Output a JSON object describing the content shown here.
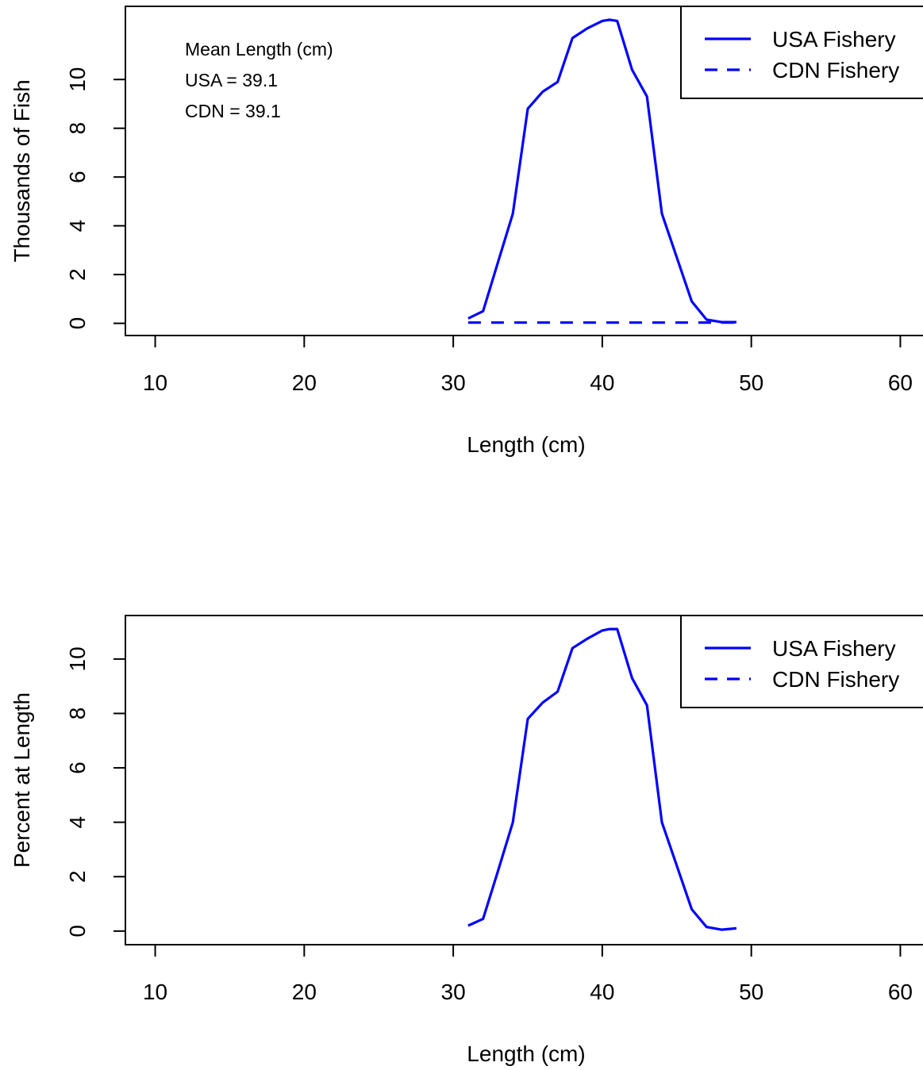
{
  "colors": {
    "series": "#0000ff",
    "axis": "#000000",
    "background": "#ffffff"
  },
  "chart_data": [
    {
      "type": "line",
      "ylabel": "Thousands of Fish",
      "xlabel": "Length (cm)",
      "xlim": [
        8,
        62
      ],
      "ylim": [
        -0.5,
        13.0
      ],
      "xticks": [
        10,
        20,
        30,
        40,
        50,
        60
      ],
      "yticks": [
        0,
        2,
        4,
        6,
        8,
        10
      ],
      "grid": false,
      "legend": {
        "position": "top-right",
        "entries": [
          "USA Fishery",
          "CDN Fishery"
        ]
      },
      "annotations": [
        "Mean Length (cm)",
        "USA = 39.1",
        "CDN = 39.1"
      ],
      "series": [
        {
          "name": "USA Fishery",
          "style": "solid",
          "x": [
            31,
            32,
            33,
            34,
            35,
            36,
            37,
            38,
            39,
            40,
            40.5,
            41,
            42,
            43,
            44,
            45,
            46,
            47,
            48,
            49
          ],
          "y": [
            0.2,
            0.5,
            2.5,
            4.5,
            8.8,
            9.5,
            9.9,
            11.7,
            12.1,
            12.4,
            12.45,
            12.4,
            10.4,
            9.3,
            4.5,
            2.7,
            0.9,
            0.15,
            0.05,
            0.05
          ]
        },
        {
          "name": "CDN Fishery",
          "style": "dashed",
          "x": [
            31,
            32,
            33,
            34,
            35,
            36,
            37,
            38,
            39,
            40,
            41,
            42,
            43,
            44,
            45,
            46,
            47,
            48,
            49
          ],
          "y": [
            0.03,
            0.03,
            0.03,
            0.03,
            0.03,
            0.03,
            0.03,
            0.03,
            0.03,
            0.03,
            0.03,
            0.03,
            0.03,
            0.03,
            0.03,
            0.03,
            0.03,
            0.03,
            0.03
          ]
        }
      ]
    },
    {
      "type": "line",
      "ylabel": "Percent at Length",
      "xlabel": "Length (cm)",
      "xlim": [
        8,
        62
      ],
      "ylim": [
        -0.5,
        11.6
      ],
      "xticks": [
        10,
        20,
        30,
        40,
        50,
        60
      ],
      "yticks": [
        0,
        2,
        4,
        6,
        8,
        10
      ],
      "grid": false,
      "legend": {
        "position": "top-right",
        "entries": [
          "USA Fishery",
          "CDN Fishery"
        ]
      },
      "series": [
        {
          "name": "USA Fishery",
          "style": "solid",
          "x": [
            31,
            32,
            33,
            34,
            35,
            36,
            37,
            38,
            39,
            40,
            40.5,
            41,
            42,
            43,
            44,
            45,
            46,
            47,
            48,
            49
          ],
          "y": [
            0.2,
            0.45,
            2.2,
            4.0,
            7.8,
            8.4,
            8.8,
            10.4,
            10.75,
            11.05,
            11.1,
            11.1,
            9.3,
            8.3,
            4.0,
            2.4,
            0.8,
            0.15,
            0.05,
            0.1
          ]
        }
      ]
    }
  ]
}
